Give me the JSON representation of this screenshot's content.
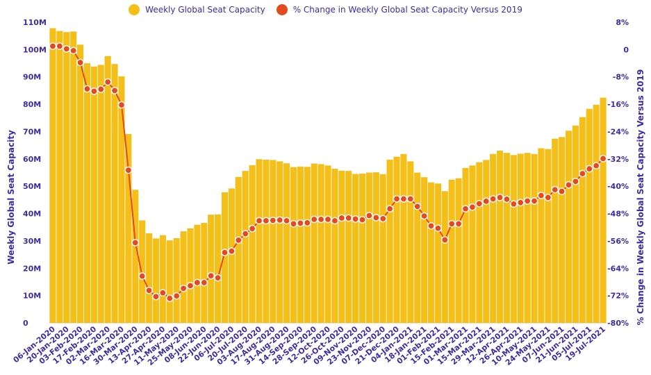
{
  "chart_data": {
    "type": "bar+line",
    "legend": [
      {
        "name": "Weekly Global Seat Capacity",
        "color": "#f5bf19",
        "marker": "bar-icon"
      },
      {
        "name": "% Change in Weekly Global Seat Capacity Versus 2019",
        "color": "#e4491f",
        "marker": "line-icon"
      }
    ],
    "ylabel_left": "Weekly Global Seat Capacity",
    "ylabel_right": "% Change in Weekly Global Seat Capacity Versus 2019",
    "ylim_left": [
      0,
      110
    ],
    "ylim_right": [
      -80,
      8
    ],
    "yticks_left": [
      "0",
      "10M",
      "20M",
      "30M",
      "40M",
      "50M",
      "60M",
      "70M",
      "80M",
      "90M",
      "100M",
      "110M"
    ],
    "yticks_right": [
      "-80%",
      "-72%",
      "-64%",
      "-56%",
      "-48%",
      "-40%",
      "-32%",
      "-24%",
      "-16%",
      "-8%",
      "0",
      "8%"
    ],
    "xtick_labels": [
      "06-Jan-2020",
      "20-Jan-2020",
      "03-Feb-2020",
      "17-Feb-2020",
      "02-Mar-2020",
      "16-Mar-2020",
      "30-Mar-2020",
      "13-Apr-2020",
      "27-Apr-2020",
      "11-May-2020",
      "25-May-2020",
      "08-Jun-2020",
      "22-Jun-2020",
      "06-Jul-2020",
      "20-Jul-2020",
      "03-Aug-2020",
      "17-Aug-2020",
      "31-Aug-2020",
      "14-Sep-2020",
      "28-Sep-2020",
      "12-Oct-2020",
      "26-Oct-2020",
      "09-Nov-2020",
      "23-Nov-2020",
      "07-Dec-2020",
      "21-Dec-2020",
      "04-Jan-2021",
      "18-Jan-2021",
      "01-Feb-2021",
      "15-Feb-2021",
      "01-Mar-2021",
      "15-Mar-2021",
      "29-Mar-2021",
      "12-Apr-2021",
      "26-Apr-2021",
      "10-May-2021",
      "24-May-2021",
      "07-Jun-2021",
      "21-Jun-2021",
      "05-Jul-2021",
      "19-Jul-2021"
    ],
    "series": [
      {
        "name": "Weekly Global Seat Capacity",
        "unit": "M",
        "values": [
          107.8,
          106.8,
          106.4,
          106.6,
          101.8,
          95.0,
          93.8,
          94.4,
          97.6,
          94.7,
          90.2,
          69.1,
          48.7,
          37.5,
          32.8,
          30.9,
          32.1,
          30.2,
          31.0,
          33.5,
          34.6,
          35.9,
          36.6,
          39.6,
          39.7,
          47.8,
          49.2,
          53.4,
          55.6,
          57.7,
          59.9,
          59.7,
          59.6,
          59.1,
          58.4,
          57.0,
          57.2,
          57.1,
          58.3,
          58.1,
          57.6,
          56.4,
          55.7,
          55.6,
          54.5,
          54.6,
          55.0,
          55.1,
          54.4,
          59.7,
          60.8,
          61.8,
          59.1,
          55.0,
          53.3,
          51.4,
          51.0,
          48.2,
          52.4,
          52.9,
          56.7,
          57.6,
          58.8,
          59.6,
          61.8,
          63.0,
          62.2,
          61.4,
          61.9,
          62.2,
          61.8,
          63.9,
          63.6,
          67.4,
          68.0,
          70.3,
          72.2,
          75.3,
          78.3,
          79.8,
          82.4
        ]
      },
      {
        "name": "% Change in Weekly Global Seat Capacity Versus 2019",
        "unit": "%",
        "values": [
          1.0,
          1.0,
          0.2,
          -0.3,
          -3.8,
          -11.5,
          -12.2,
          -11.6,
          -9.5,
          -12.0,
          -16.2,
          -35.3,
          -56.5,
          -66.3,
          -70.5,
          -72.3,
          -71.2,
          -72.8,
          -72.1,
          -69.9,
          -69.1,
          -68.2,
          -68.2,
          -66.2,
          -66.8,
          -59.4,
          -59.0,
          -55.8,
          -53.9,
          -52.4,
          -50.1,
          -50.1,
          -50.0,
          -49.9,
          -50.1,
          -51.0,
          -50.8,
          -50.7,
          -49.7,
          -49.7,
          -49.7,
          -50.1,
          -49.3,
          -49.3,
          -49.6,
          -49.8,
          -48.6,
          -49.2,
          -49.5,
          -46.6,
          -43.7,
          -43.7,
          -43.7,
          -45.9,
          -48.7,
          -51.6,
          -52.3,
          -55.7,
          -51.0,
          -51.0,
          -46.6,
          -46.1,
          -45.1,
          -44.4,
          -43.7,
          -43.3,
          -43.8,
          -45.2,
          -44.8,
          -44.3,
          -44.3,
          -42.7,
          -43.3,
          -41.0,
          -41.5,
          -39.6,
          -38.6,
          -36.3,
          -34.9,
          -34.0,
          -31.9
        ]
      }
    ]
  }
}
